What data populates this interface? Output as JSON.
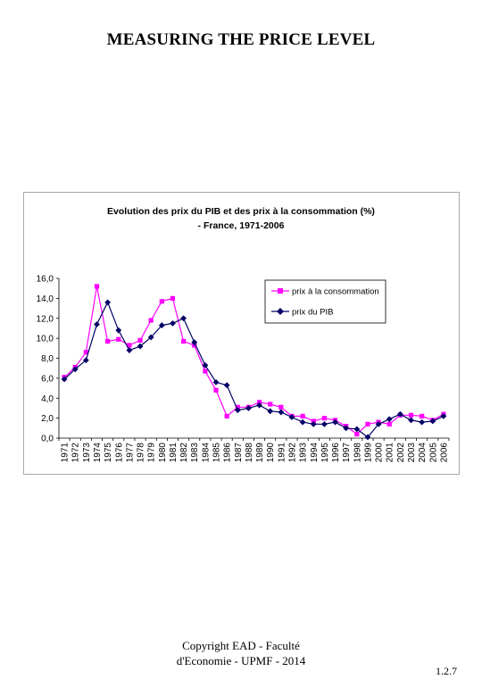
{
  "slide": {
    "title": "MEASURING THE PRICE LEVEL",
    "footer_line1": "Copyright EAD - Faculté",
    "footer_line2": "d'Economie - UPMF - 2014",
    "page_number": "1.2.7"
  },
  "chart_data": {
    "type": "line",
    "title_line1": "Evolution des prix du PIB et des prix à la consommation (%)",
    "title_line2": "- France, 1971-2006",
    "xlabel": "",
    "ylabel": "",
    "ylim": [
      0,
      16
    ],
    "ytick_step": 2,
    "grid": false,
    "legend_position": "top-right",
    "categories": [
      "1971",
      "1972",
      "1973",
      "1974",
      "1975",
      "1976",
      "1977",
      "1978",
      "1979",
      "1980",
      "1981",
      "1982",
      "1983",
      "1984",
      "1985",
      "1986",
      "1987",
      "1988",
      "1989",
      "1990",
      "1991",
      "1992",
      "1993",
      "1994",
      "1995",
      "1996",
      "1997",
      "1998",
      "1999",
      "2000",
      "2001",
      "2002",
      "2003",
      "2004",
      "2005",
      "2006"
    ],
    "series": [
      {
        "name": "prix à la consommation",
        "color": "#ff00ff",
        "marker": "square",
        "values": [
          6.1,
          7.1,
          8.6,
          15.2,
          9.7,
          9.9,
          9.3,
          9.8,
          11.8,
          13.7,
          14.0,
          9.7,
          9.3,
          6.7,
          4.8,
          2.2,
          3.1,
          3.1,
          3.6,
          3.4,
          3.1,
          2.2,
          2.2,
          1.7,
          2.0,
          1.8,
          1.2,
          0.4,
          1.4,
          1.6,
          1.4,
          2.3,
          2.3,
          2.2,
          1.8,
          2.4
        ]
      },
      {
        "name": "prix du PIB",
        "color": "#000066",
        "marker": "diamond",
        "values": [
          5.9,
          6.9,
          7.8,
          11.4,
          13.6,
          10.8,
          8.8,
          9.2,
          10.1,
          11.3,
          11.5,
          12.0,
          9.6,
          7.3,
          5.6,
          5.3,
          2.8,
          3.0,
          3.3,
          2.7,
          2.6,
          2.1,
          1.6,
          1.4,
          1.4,
          1.6,
          1.0,
          0.9,
          0.1,
          1.4,
          1.9,
          2.4,
          1.8,
          1.6,
          1.7,
          2.2
        ]
      }
    ]
  }
}
